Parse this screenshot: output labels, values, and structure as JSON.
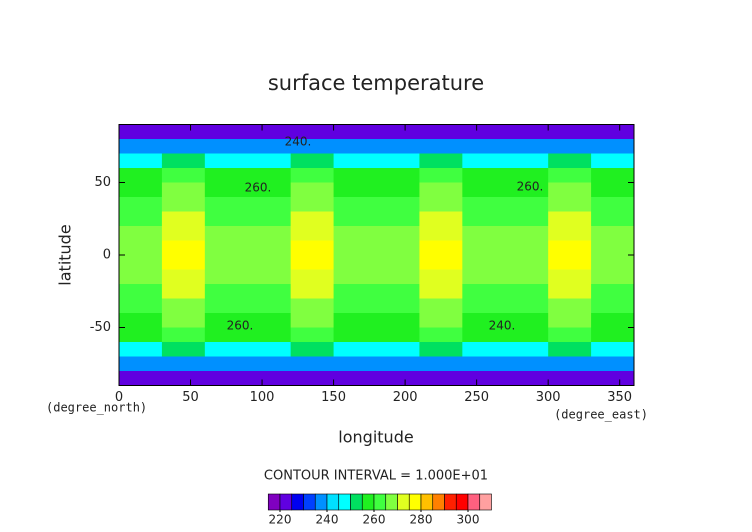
{
  "chart_data": {
    "type": "contour",
    "title": "surface temperature",
    "x_label": "longitude",
    "y_label": "latitude",
    "x_unit": "(degree_east)",
    "y_unit": "(degree_north)",
    "xlim": [
      0,
      360
    ],
    "ylim": [
      -90,
      90
    ],
    "xticks": [
      0,
      50,
      100,
      150,
      200,
      250,
      300,
      350
    ],
    "yticks": [
      -50,
      0,
      50
    ],
    "lon": [
      15,
      45,
      75,
      105,
      135,
      165,
      195,
      225,
      255,
      285,
      315,
      345
    ],
    "lat": [
      85,
      75,
      65,
      55,
      45,
      35,
      25,
      15,
      5,
      -5,
      -15,
      -25,
      -35,
      -45,
      -55,
      -65,
      -75,
      -85
    ],
    "z": [
      [
        222,
        222,
        222,
        222,
        222,
        222,
        222,
        222,
        222,
        222,
        222,
        222
      ],
      [
        235,
        237,
        235,
        235,
        237,
        235,
        235,
        237,
        235,
        235,
        237,
        235
      ],
      [
        247,
        252,
        247,
        247,
        252,
        247,
        247,
        252,
        247,
        247,
        252,
        247
      ],
      [
        255,
        262,
        255,
        255,
        262,
        255,
        255,
        262,
        255,
        255,
        262,
        255
      ],
      [
        258,
        266,
        258,
        258,
        266,
        258,
        258,
        266,
        258,
        258,
        266,
        258
      ],
      [
        261,
        268,
        261,
        261,
        268,
        261,
        261,
        268,
        261,
        261,
        268,
        261
      ],
      [
        264,
        272,
        264,
        264,
        272,
        264,
        264,
        272,
        264,
        264,
        272,
        264
      ],
      [
        265,
        274,
        265,
        265,
        274,
        265,
        265,
        274,
        265,
        265,
        274,
        265
      ],
      [
        266,
        275,
        266,
        266,
        275,
        266,
        266,
        275,
        266,
        266,
        275,
        266
      ],
      [
        266,
        275,
        266,
        266,
        275,
        266,
        266,
        275,
        266,
        266,
        275,
        266
      ],
      [
        265,
        274,
        265,
        265,
        274,
        265,
        265,
        274,
        265,
        265,
        274,
        265
      ],
      [
        264,
        272,
        264,
        264,
        272,
        264,
        264,
        272,
        264,
        264,
        272,
        264
      ],
      [
        261,
        268,
        261,
        261,
        268,
        261,
        261,
        268,
        261,
        261,
        268,
        261
      ],
      [
        258,
        266,
        258,
        258,
        266,
        258,
        258,
        266,
        258,
        258,
        266,
        258
      ],
      [
        255,
        262,
        255,
        255,
        262,
        255,
        255,
        262,
        255,
        255,
        262,
        255
      ],
      [
        247,
        252,
        247,
        247,
        252,
        247,
        247,
        252,
        247,
        247,
        252,
        247
      ],
      [
        235,
        237,
        235,
        235,
        237,
        235,
        235,
        237,
        235,
        235,
        237,
        235
      ],
      [
        222,
        222,
        222,
        222,
        222,
        222,
        222,
        222,
        222,
        222,
        222,
        222
      ]
    ],
    "contour_labels": [
      "240.",
      "260.",
      "260.",
      "260.",
      "240."
    ],
    "contour_interval": "CONTOUR INTERVAL = 1.000E+01",
    "levels": [
      215,
      220,
      225,
      230,
      235,
      240,
      245,
      250,
      255,
      260,
      265,
      270,
      275,
      280,
      285,
      290,
      295,
      300,
      305,
      310
    ],
    "colors": [
      "#8000c0",
      "#6000e0",
      "#0000f0",
      "#0040ff",
      "#0090ff",
      "#00e0ff",
      "#00ffff",
      "#00e060",
      "#20f020",
      "#40ff40",
      "#80ff40",
      "#e0ff20",
      "#ffff00",
      "#ffc000",
      "#ff8000",
      "#ff2000",
      "#ff0000",
      "#ff6080",
      "#ffa0a0"
    ],
    "colorbar_ticks": [
      220,
      240,
      260,
      280,
      300
    ]
  }
}
